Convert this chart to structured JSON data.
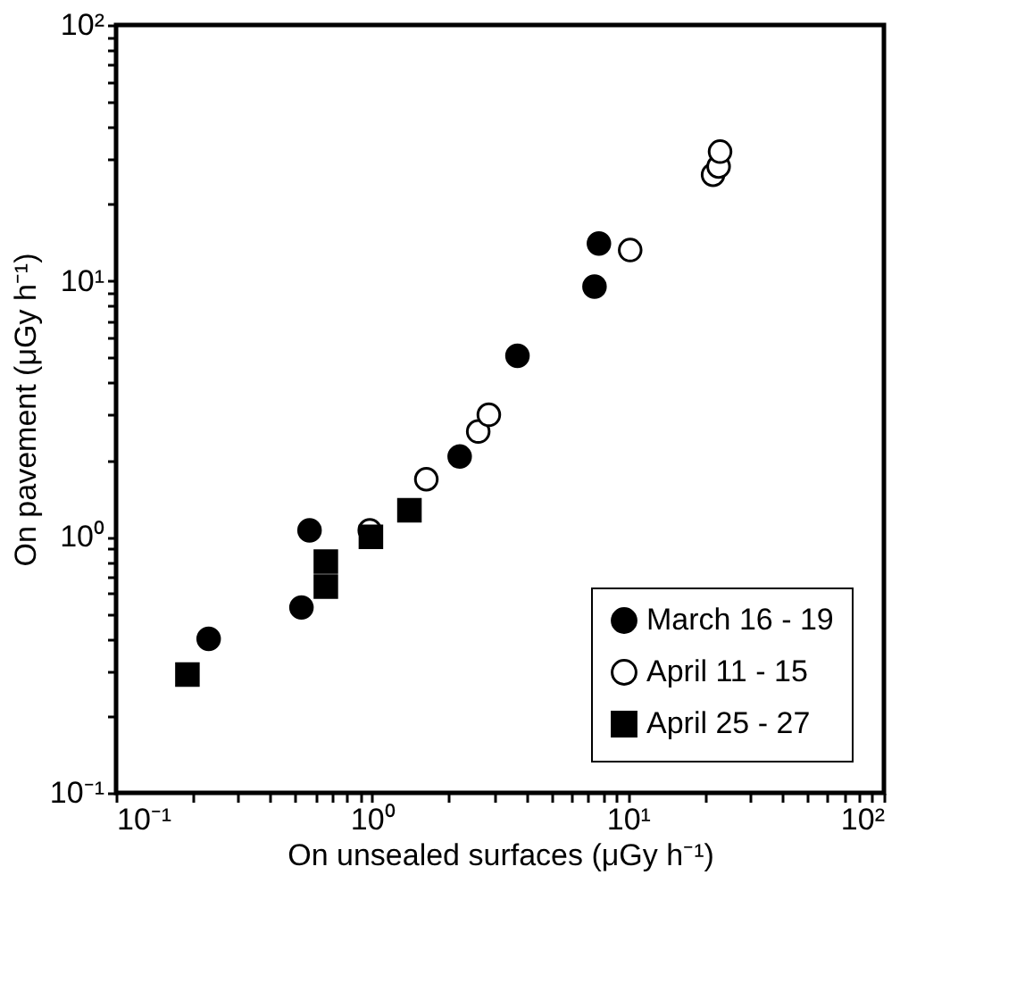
{
  "chart_data": {
    "type": "scatter",
    "xlabel": "On unsealed surfaces (μGy h⁻¹)",
    "ylabel": "On pavement (μGy h⁻¹)",
    "log": "xy",
    "grid": false,
    "legend": "bottom right",
    "xlim": [
      0.1,
      100
    ],
    "ylim": [
      0.1,
      100
    ],
    "xticks": [
      {
        "value": 0.1,
        "label": "10⁻¹"
      },
      {
        "value": 0.2,
        "label": null
      },
      {
        "value": 0.3,
        "label": null
      },
      {
        "value": 0.4,
        "label": null
      },
      {
        "value": 0.5,
        "label": null
      },
      {
        "value": 0.6,
        "label": null
      },
      {
        "value": 0.7,
        "label": null
      },
      {
        "value": 0.8,
        "label": null
      },
      {
        "value": 0.9,
        "label": null
      },
      {
        "value": 1,
        "label": "10⁰"
      },
      {
        "value": 2,
        "label": null
      },
      {
        "value": 3,
        "label": null
      },
      {
        "value": 4,
        "label": null
      },
      {
        "value": 5,
        "label": null
      },
      {
        "value": 6,
        "label": null
      },
      {
        "value": 7,
        "label": null
      },
      {
        "value": 8,
        "label": null
      },
      {
        "value": 9,
        "label": null
      },
      {
        "value": 10,
        "label": "10¹"
      },
      {
        "value": 20,
        "label": null
      },
      {
        "value": 30,
        "label": null
      },
      {
        "value": 40,
        "label": null
      },
      {
        "value": 50,
        "label": null
      },
      {
        "value": 60,
        "label": null
      },
      {
        "value": 70,
        "label": null
      },
      {
        "value": 80,
        "label": null
      },
      {
        "value": 90,
        "label": null
      },
      {
        "value": 100,
        "label": "10²"
      }
    ],
    "yticks": [
      {
        "value": 0.1,
        "label": "10⁻¹"
      },
      {
        "value": 0.2,
        "label": null
      },
      {
        "value": 0.3,
        "label": null
      },
      {
        "value": 0.4,
        "label": null
      },
      {
        "value": 0.5,
        "label": null
      },
      {
        "value": 0.6,
        "label": null
      },
      {
        "value": 0.7,
        "label": null
      },
      {
        "value": 0.8,
        "label": null
      },
      {
        "value": 0.9,
        "label": null
      },
      {
        "value": 1,
        "label": "10⁰"
      },
      {
        "value": 2,
        "label": null
      },
      {
        "value": 3,
        "label": null
      },
      {
        "value": 4,
        "label": null
      },
      {
        "value": 5,
        "label": null
      },
      {
        "value": 6,
        "label": null
      },
      {
        "value": 7,
        "label": null
      },
      {
        "value": 8,
        "label": null
      },
      {
        "value": 9,
        "label": null
      },
      {
        "value": 10,
        "label": "10¹"
      },
      {
        "value": 20,
        "label": null
      },
      {
        "value": 30,
        "label": null
      },
      {
        "value": 40,
        "label": null
      },
      {
        "value": 50,
        "label": null
      },
      {
        "value": 60,
        "label": null
      },
      {
        "value": 70,
        "label": null
      },
      {
        "value": 80,
        "label": null
      },
      {
        "value": 90,
        "label": null
      },
      {
        "value": 100,
        "label": "10²"
      }
    ],
    "series": [
      {
        "name": "March 16 - 19",
        "color": "#000000",
        "marker": "circle",
        "x": [
          0.23,
          0.53,
          0.57,
          2.2,
          3.7,
          7.4,
          7.7
        ],
        "values": [
          0.4,
          0.53,
          1.06,
          2.06,
          5.1,
          9.5,
          14
        ]
      },
      {
        "name": "April 11 - 15",
        "color": "#ffffff",
        "marker": "circle",
        "x": [
          0.98,
          1.63,
          2.6,
          2.86,
          10.2,
          21.5,
          22.6,
          22.9
        ],
        "values": [
          1.06,
          1.68,
          2.58,
          3.0,
          13.2,
          26,
          28,
          32
        ]
      },
      {
        "name": "April 25 - 27",
        "color": "#000000",
        "marker": "square",
        "x": [
          0.19,
          0.66,
          0.66,
          0.99,
          1.4
        ],
        "values": [
          0.29,
          0.8,
          0.64,
          1.0,
          1.27
        ]
      }
    ]
  }
}
